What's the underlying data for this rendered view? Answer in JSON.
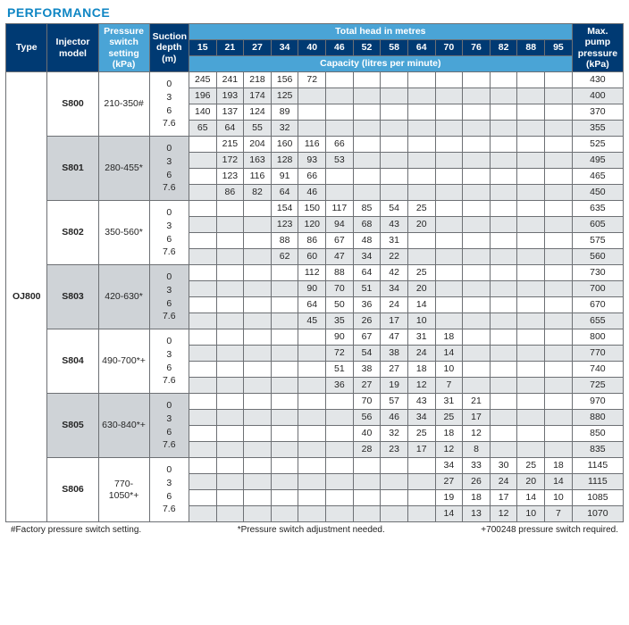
{
  "title": "PERFORMANCE",
  "headers": {
    "type": "Type",
    "injector": "Injector model",
    "pressure_switch": "Pressure switch setting (kPa)",
    "suction_depth": "Suction depth (m)",
    "total_head": "Total head in metres",
    "capacity": "Capacity (litres per minute)",
    "max_pressure": "Max. pump pressure (kPa)"
  },
  "head_cols": [
    "15",
    "21",
    "27",
    "34",
    "40",
    "46",
    "52",
    "58",
    "64",
    "70",
    "76",
    "82",
    "88",
    "95"
  ],
  "type_label": "OJ800",
  "depths": [
    "0",
    "3",
    "6",
    "7.6"
  ],
  "injectors": [
    {
      "model": "S800",
      "pset": "210-350#",
      "band": "a",
      "rows": [
        {
          "start": 0,
          "vals": [
            "245",
            "241",
            "218",
            "156",
            "72"
          ],
          "mx": "430"
        },
        {
          "start": 0,
          "vals": [
            "196",
            "193",
            "174",
            "125"
          ],
          "mx": "400"
        },
        {
          "start": 0,
          "vals": [
            "140",
            "137",
            "124",
            "89"
          ],
          "mx": "370"
        },
        {
          "start": 0,
          "vals": [
            "65",
            "64",
            "55",
            "32"
          ],
          "mx": "355"
        }
      ]
    },
    {
      "model": "S801",
      "pset": "280-455*",
      "band": "b",
      "rows": [
        {
          "start": 1,
          "vals": [
            "215",
            "204",
            "160",
            "116",
            "66"
          ],
          "mx": "525"
        },
        {
          "start": 1,
          "vals": [
            "172",
            "163",
            "128",
            "93",
            "53"
          ],
          "mx": "495"
        },
        {
          "start": 1,
          "vals": [
            "123",
            "116",
            "91",
            "66"
          ],
          "mx": "465"
        },
        {
          "start": 1,
          "vals": [
            "86",
            "82",
            "64",
            "46"
          ],
          "mx": "450"
        }
      ]
    },
    {
      "model": "S802",
      "pset": "350-560*",
      "band": "a",
      "rows": [
        {
          "start": 3,
          "vals": [
            "154",
            "150",
            "117",
            "85",
            "54",
            "25"
          ],
          "mx": "635"
        },
        {
          "start": 3,
          "vals": [
            "123",
            "120",
            "94",
            "68",
            "43",
            "20"
          ],
          "mx": "605"
        },
        {
          "start": 3,
          "vals": [
            "88",
            "86",
            "67",
            "48",
            "31"
          ],
          "mx": "575"
        },
        {
          "start": 3,
          "vals": [
            "62",
            "60",
            "47",
            "34",
            "22"
          ],
          "mx": "560"
        }
      ]
    },
    {
      "model": "S803",
      "pset": "420-630*",
      "band": "b",
      "rows": [
        {
          "start": 4,
          "vals": [
            "112",
            "88",
            "64",
            "42",
            "25"
          ],
          "mx": "730"
        },
        {
          "start": 4,
          "vals": [
            "90",
            "70",
            "51",
            "34",
            "20"
          ],
          "mx": "700"
        },
        {
          "start": 4,
          "vals": [
            "64",
            "50",
            "36",
            "24",
            "14"
          ],
          "mx": "670"
        },
        {
          "start": 4,
          "vals": [
            "45",
            "35",
            "26",
            "17",
            "10"
          ],
          "mx": "655"
        }
      ]
    },
    {
      "model": "S804",
      "pset": "490-700*+",
      "band": "a",
      "rows": [
        {
          "start": 5,
          "vals": [
            "90",
            "67",
            "47",
            "31",
            "18"
          ],
          "mx": "800"
        },
        {
          "start": 5,
          "vals": [
            "72",
            "54",
            "38",
            "24",
            "14"
          ],
          "mx": "770"
        },
        {
          "start": 5,
          "vals": [
            "51",
            "38",
            "27",
            "18",
            "10"
          ],
          "mx": "740"
        },
        {
          "start": 5,
          "vals": [
            "36",
            "27",
            "19",
            "12",
            "7"
          ],
          "mx": "725"
        }
      ]
    },
    {
      "model": "S805",
      "pset": "630-840*+",
      "band": "b",
      "rows": [
        {
          "start": 6,
          "vals": [
            "70",
            "57",
            "43",
            "31",
            "21"
          ],
          "mx": "970"
        },
        {
          "start": 6,
          "vals": [
            "56",
            "46",
            "34",
            "25",
            "17"
          ],
          "mx": "880"
        },
        {
          "start": 6,
          "vals": [
            "40",
            "32",
            "25",
            "18",
            "12"
          ],
          "mx": "850"
        },
        {
          "start": 6,
          "vals": [
            "28",
            "23",
            "17",
            "12",
            "8"
          ],
          "mx": "835"
        }
      ]
    },
    {
      "model": "S806",
      "pset": "770-1050*+",
      "band": "a",
      "rows": [
        {
          "start": 9,
          "vals": [
            "34",
            "33",
            "30",
            "25",
            "18"
          ],
          "mx": "1145"
        },
        {
          "start": 9,
          "vals": [
            "27",
            "26",
            "24",
            "20",
            "14"
          ],
          "mx": "1115"
        },
        {
          "start": 9,
          "vals": [
            "19",
            "18",
            "17",
            "14",
            "10"
          ],
          "mx": "1085"
        },
        {
          "start": 9,
          "vals": [
            "14",
            "13",
            "12",
            "10",
            "7"
          ],
          "mx": "1070"
        }
      ]
    }
  ],
  "footnotes": {
    "a": "#Factory pressure switch setting.",
    "b": "*Pressure switch adjustment needed.",
    "c": "+700248 pressure switch required."
  },
  "colors": {
    "blue_title": "#0f86c4",
    "blue_dark": "#003a73",
    "blue_mid": "#4aa4d6",
    "grey_band": "#cfd3d7",
    "grey_alt": "#e3e6e8"
  }
}
